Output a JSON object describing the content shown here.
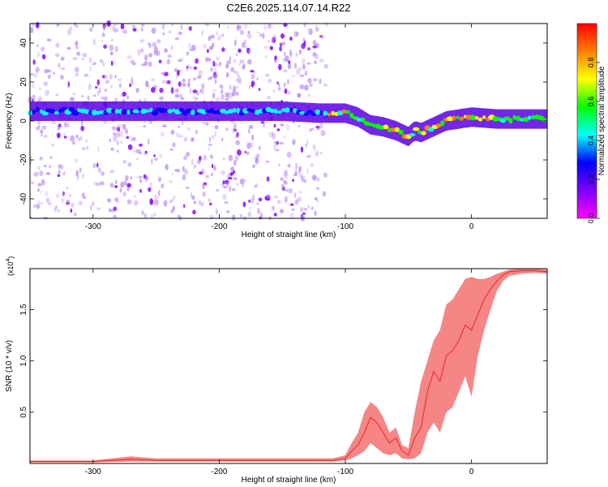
{
  "figure_title": "C2E6.2025.114.07.14.R22",
  "colorbar": {
    "label": "Normalized spectral amplitude",
    "ticks": [
      0.0,
      0.2,
      0.4,
      0.6,
      0.8
    ],
    "tick_labels": [
      "0.0",
      "0.2",
      "0.4",
      "0.6",
      "0.8"
    ],
    "colors": [
      "#ff00ff",
      "#7f00ff",
      "#0000ff",
      "#00ffff",
      "#00ff00",
      "#ffff00",
      "#ff7f00",
      "#ff0000"
    ]
  },
  "chart_data": [
    {
      "type": "heatmap",
      "title": "",
      "xlabel": "Height of straight line (km)",
      "ylabel": "Frequency (Hz)",
      "xlim": [
        -350,
        60
      ],
      "ylim": [
        -50,
        50
      ],
      "xticks": [
        -300,
        -200,
        -100,
        0
      ],
      "xtick_labels": [
        "-300",
        "-200",
        "-100",
        "0"
      ],
      "yticks": [
        -40,
        -20,
        0,
        20,
        40
      ],
      "ytick_labels": [
        "-40",
        "-20",
        "0",
        "20",
        "40"
      ],
      "ridge": {
        "x": [
          -350,
          -300,
          -250,
          -200,
          -150,
          -120,
          -100,
          -90,
          -80,
          -70,
          -60,
          -50,
          -45,
          -40,
          -30,
          -20,
          -10,
          0,
          20,
          40,
          60
        ],
        "frequency": [
          5,
          5,
          5,
          5,
          5,
          4,
          4,
          2,
          -2,
          -3,
          -5,
          -8,
          -5,
          -6,
          -3,
          0,
          1,
          2,
          1,
          1,
          1
        ]
      },
      "noise_region_x": [
        -350,
        -115
      ]
    },
    {
      "type": "line",
      "title": "",
      "xlabel": "Height of straight line (km)",
      "ylabel": "SNR (10 * v/v)",
      "yscale_label": "(x10",
      "yscale_exponent": "4",
      "xlim": [
        -350,
        60
      ],
      "ylim": [
        0,
        1.9
      ],
      "xticks": [
        -300,
        -200,
        -100,
        0
      ],
      "xtick_labels": [
        "-300",
        "-200",
        "-100",
        "0"
      ],
      "yticks": [
        0.5,
        1.0,
        1.5
      ],
      "ytick_labels": [
        "0.5",
        "1.0",
        "1.5"
      ],
      "series": [
        {
          "color": "#ee2222",
          "x": [
            -350,
            -300,
            -270,
            -250,
            -200,
            -150,
            -120,
            -110,
            -100,
            -95,
            -90,
            -85,
            -80,
            -75,
            -70,
            -65,
            -60,
            -55,
            -50,
            -45,
            -40,
            -35,
            -30,
            -25,
            -20,
            -15,
            -10,
            -5,
            0,
            5,
            10,
            15,
            20,
            25,
            30,
            40,
            50,
            60
          ],
          "y": [
            0.02,
            0.02,
            0.04,
            0.03,
            0.03,
            0.03,
            0.03,
            0.03,
            0.05,
            0.12,
            0.18,
            0.3,
            0.45,
            0.4,
            0.3,
            0.2,
            0.25,
            0.12,
            0.08,
            0.25,
            0.35,
            0.7,
            0.9,
            0.8,
            1.05,
            1.1,
            1.2,
            1.35,
            1.3,
            1.45,
            1.6,
            1.7,
            1.78,
            1.84,
            1.87,
            1.88,
            1.88,
            1.87
          ],
          "envelope_max": [
            0.03,
            0.03,
            0.07,
            0.05,
            0.05,
            0.05,
            0.05,
            0.05,
            0.08,
            0.2,
            0.3,
            0.5,
            0.6,
            0.55,
            0.45,
            0.3,
            0.35,
            0.18,
            0.15,
            0.5,
            0.8,
            1.0,
            1.2,
            1.3,
            1.55,
            1.6,
            1.7,
            1.8,
            1.82,
            1.8,
            1.8,
            1.82,
            1.85,
            1.87,
            1.89,
            1.9,
            1.9,
            1.89
          ],
          "envelope_min": [
            0.01,
            0.01,
            0.02,
            0.02,
            0.02,
            0.02,
            0.02,
            0.02,
            0.03,
            0.05,
            0.08,
            0.12,
            0.2,
            0.15,
            0.1,
            0.08,
            0.1,
            0.05,
            0.04,
            0.05,
            0.1,
            0.3,
            0.4,
            0.3,
            0.5,
            0.55,
            0.7,
            0.85,
            0.65,
            1.05,
            1.3,
            1.5,
            1.68,
            1.78,
            1.83,
            1.85,
            1.86,
            1.85
          ]
        }
      ]
    }
  ]
}
